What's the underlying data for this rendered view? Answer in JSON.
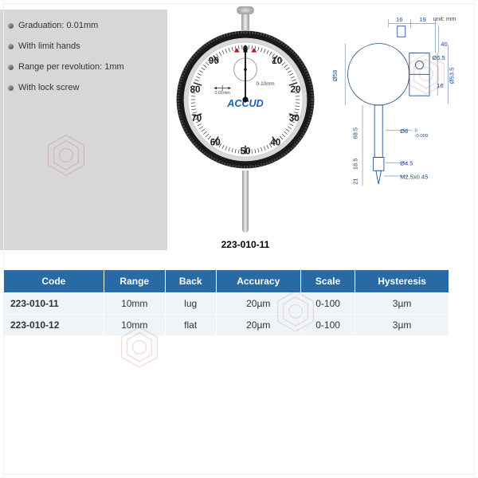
{
  "bullets": [
    "Graduation: 0.01mm",
    "With limit hands",
    "Range per revolution: 1mm",
    "With lock screw"
  ],
  "gauge": {
    "brand": "ACCUD",
    "range_label": "0-10mm",
    "grad_label": "0.01mm",
    "dial_numbers": [
      "0",
      "10",
      "20",
      "30",
      "40",
      "50",
      "60",
      "70",
      "80",
      "90"
    ],
    "bezel_color": "#1a1a1a",
    "face_color": "#ffffff",
    "brand_color": "#1a5fbf"
  },
  "model_label": "223-010-11",
  "diagram": {
    "unit_label": "unit: mm",
    "dims": {
      "top_a": "16",
      "top_b": "19",
      "h1": "40",
      "dia1": "Ø58",
      "dia2": "Ø53.5",
      "hole": "Ø6.5",
      "hole_off": "16",
      "stem": "68.5",
      "grip": "18.5",
      "stem_dia": "Ø8",
      "stem_tol": "0\n-0.009",
      "tip_dia": "Ø4.5",
      "thread": "M2.5x0.45",
      "tip_h": "21"
    }
  },
  "table": {
    "headers": [
      "Code",
      "Range",
      "Back",
      "Accuracy",
      "Scale",
      "Hysteresis"
    ],
    "rows": [
      [
        "223-010-11",
        "10mm",
        "lug",
        "20µm",
        "0-100",
        "3µm"
      ],
      [
        "223-010-12",
        "10mm",
        "flat",
        "20µm",
        "0-100",
        "3µm"
      ]
    ],
    "header_bg": "#286aa6",
    "header_fg": "#ffffff",
    "cell_bg": "#eef4f8"
  },
  "watermark_color": "#b7443a"
}
